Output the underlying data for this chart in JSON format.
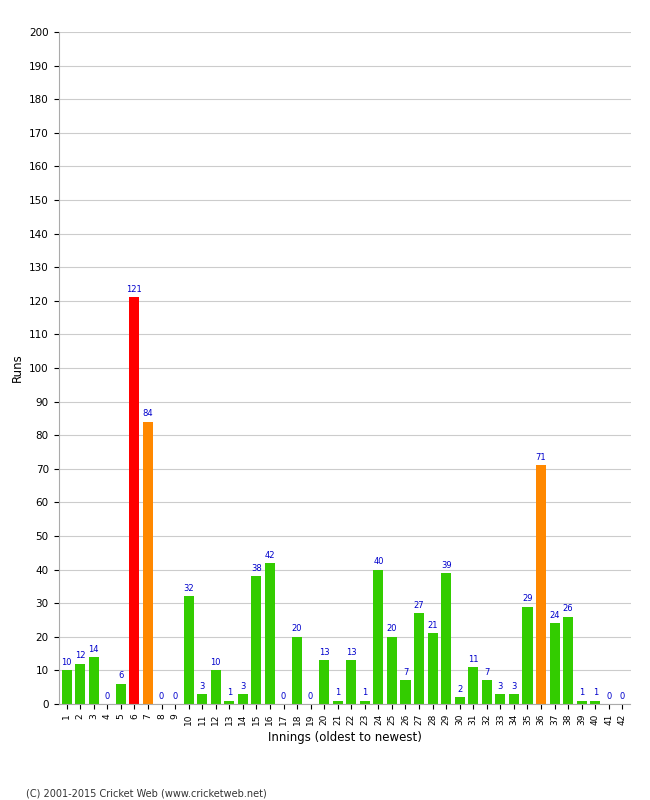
{
  "xlabel": "Innings (oldest to newest)",
  "ylabel": "Runs",
  "ylim": [
    0,
    200
  ],
  "yticks": [
    0,
    10,
    20,
    30,
    40,
    50,
    60,
    70,
    80,
    90,
    100,
    110,
    120,
    130,
    140,
    150,
    160,
    170,
    180,
    190,
    200
  ],
  "innings": [
    1,
    2,
    3,
    4,
    5,
    6,
    7,
    8,
    9,
    10,
    11,
    12,
    13,
    14,
    15,
    16,
    17,
    18,
    19,
    20,
    21,
    22,
    23,
    24,
    25,
    26,
    27,
    28,
    29,
    30,
    31,
    32,
    33,
    34,
    35,
    36,
    37,
    38,
    39,
    40,
    41,
    42
  ],
  "values": [
    10,
    12,
    14,
    0,
    6,
    121,
    84,
    0,
    0,
    32,
    3,
    10,
    1,
    3,
    38,
    42,
    0,
    20,
    0,
    13,
    1,
    13,
    1,
    40,
    20,
    7,
    27,
    21,
    39,
    2,
    11,
    7,
    3,
    3,
    29,
    71,
    24,
    26,
    1,
    1,
    0,
    0
  ],
  "colors": [
    "#33cc00",
    "#33cc00",
    "#33cc00",
    "#33cc00",
    "#33cc00",
    "#ff0000",
    "#ff8800",
    "#33cc00",
    "#33cc00",
    "#33cc00",
    "#33cc00",
    "#33cc00",
    "#33cc00",
    "#33cc00",
    "#33cc00",
    "#33cc00",
    "#33cc00",
    "#33cc00",
    "#33cc00",
    "#33cc00",
    "#33cc00",
    "#33cc00",
    "#33cc00",
    "#33cc00",
    "#33cc00",
    "#33cc00",
    "#33cc00",
    "#33cc00",
    "#33cc00",
    "#33cc00",
    "#33cc00",
    "#33cc00",
    "#33cc00",
    "#33cc00",
    "#33cc00",
    "#ff8800",
    "#33cc00",
    "#33cc00",
    "#33cc00",
    "#33cc00",
    "#33cc00",
    "#33cc00"
  ],
  "label_color": "#0000cc",
  "bg_color": "#ffffff",
  "grid_color": "#cccccc",
  "footer": "(C) 2001-2015 Cricket Web (www.cricketweb.net)"
}
